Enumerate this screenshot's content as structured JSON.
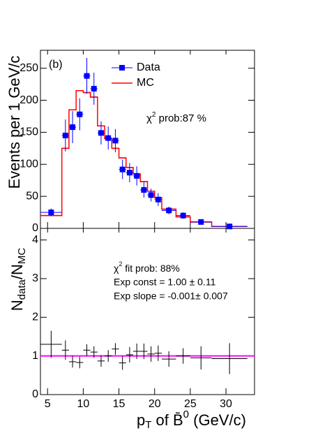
{
  "chart_data": [
    {
      "type": "histogram",
      "ylabel": "Events per 1 GeV/c",
      "annotations": {
        "panel": "(b)",
        "chi2": [
          "χ",
          "2",
          " prob:87 %"
        ]
      },
      "xlim": [
        4,
        34
      ],
      "xticks": [
        5,
        10,
        15,
        20,
        25,
        30
      ],
      "ylim": [
        0,
        278
      ],
      "yticks": [
        0,
        50,
        100,
        150,
        200,
        250
      ],
      "series": [
        {
          "name": "Data",
          "color": "#0000ff",
          "x": [
            5.5,
            7.5,
            8.5,
            9.5,
            10.5,
            11.5,
            12.5,
            13.5,
            14.5,
            15.5,
            16.5,
            17.5,
            18.5,
            19.5,
            20.5,
            22,
            24,
            26.5,
            30.5
          ],
          "xerrors": [
            1.5,
            0.5,
            0.5,
            0.5,
            0.5,
            0.5,
            0.5,
            0.5,
            0.5,
            0.5,
            0.5,
            0.5,
            0.5,
            0.5,
            0.5,
            1,
            1,
            1.5,
            2.5
          ],
          "values": [
            25,
            145,
            158,
            178,
            238,
            218,
            149,
            141,
            137,
            92,
            87,
            82,
            60,
            52,
            45,
            28,
            20,
            10,
            3
          ],
          "errors": [
            6,
            25,
            25,
            25,
            28,
            25,
            18,
            18,
            18,
            15,
            15,
            15,
            12,
            10,
            10,
            6,
            5,
            3,
            2
          ]
        },
        {
          "name": "MC",
          "color": "#ff0000",
          "bins": [
            4,
            7,
            8,
            9,
            10,
            11,
            12,
            13,
            14,
            15,
            16,
            17,
            18,
            19,
            20,
            21,
            23,
            25,
            28,
            33
          ],
          "values": [
            20,
            125,
            185,
            215,
            212,
            205,
            160,
            140,
            125,
            110,
            95,
            85,
            73,
            58,
            48,
            30,
            18,
            10,
            3
          ]
        }
      ]
    },
    {
      "type": "errorbar",
      "ylabel": [
        "N",
        "data",
        "/N",
        "MC"
      ],
      "xlabel": [
        "p",
        "T",
        " of B̄",
        "0",
        "  (GeV/c)"
      ],
      "annotations": {
        "chi2": [
          "χ",
          "2",
          " fit prob: 88%"
        ],
        "const": "Exp const = 1.00 ± 0.11",
        "slope": "Exp slope = -0.001± 0.007"
      },
      "xlim": [
        4,
        34
      ],
      "xticks": [
        5,
        10,
        15,
        20,
        25,
        30
      ],
      "ylim": [
        0,
        4.3
      ],
      "yticks": [
        0,
        1,
        2,
        3,
        4
      ],
      "series": [
        {
          "color": "#000000",
          "x": [
            5.5,
            7.5,
            8.5,
            9.5,
            10.5,
            11.5,
            12.5,
            13.5,
            14.5,
            15.5,
            16.5,
            17.5,
            18.5,
            19.5,
            20.5,
            22,
            24,
            26.5,
            30.5
          ],
          "xerrors": [
            1.5,
            0.5,
            0.5,
            0.5,
            0.5,
            0.5,
            0.5,
            0.5,
            0.5,
            0.5,
            0.5,
            0.5,
            0.5,
            0.5,
            0.5,
            1,
            1,
            1.5,
            2.5
          ],
          "values": [
            1.3,
            1.15,
            0.85,
            0.83,
            1.15,
            1.1,
            0.87,
            1.0,
            1.18,
            0.82,
            1.03,
            1.12,
            1.12,
            1.05,
            1.07,
            0.92,
            1.0,
            0.95,
            0.93
          ],
          "errors": [
            0.35,
            0.25,
            0.15,
            0.15,
            0.15,
            0.15,
            0.15,
            0.15,
            0.15,
            0.18,
            0.2,
            0.2,
            0.2,
            0.2,
            0.2,
            0.2,
            0.2,
            0.3,
            0.4
          ]
        }
      ],
      "fit": {
        "color": "#ff00ff",
        "x": [
          4,
          34
        ],
        "values": [
          1.0,
          1.0
        ]
      }
    }
  ]
}
